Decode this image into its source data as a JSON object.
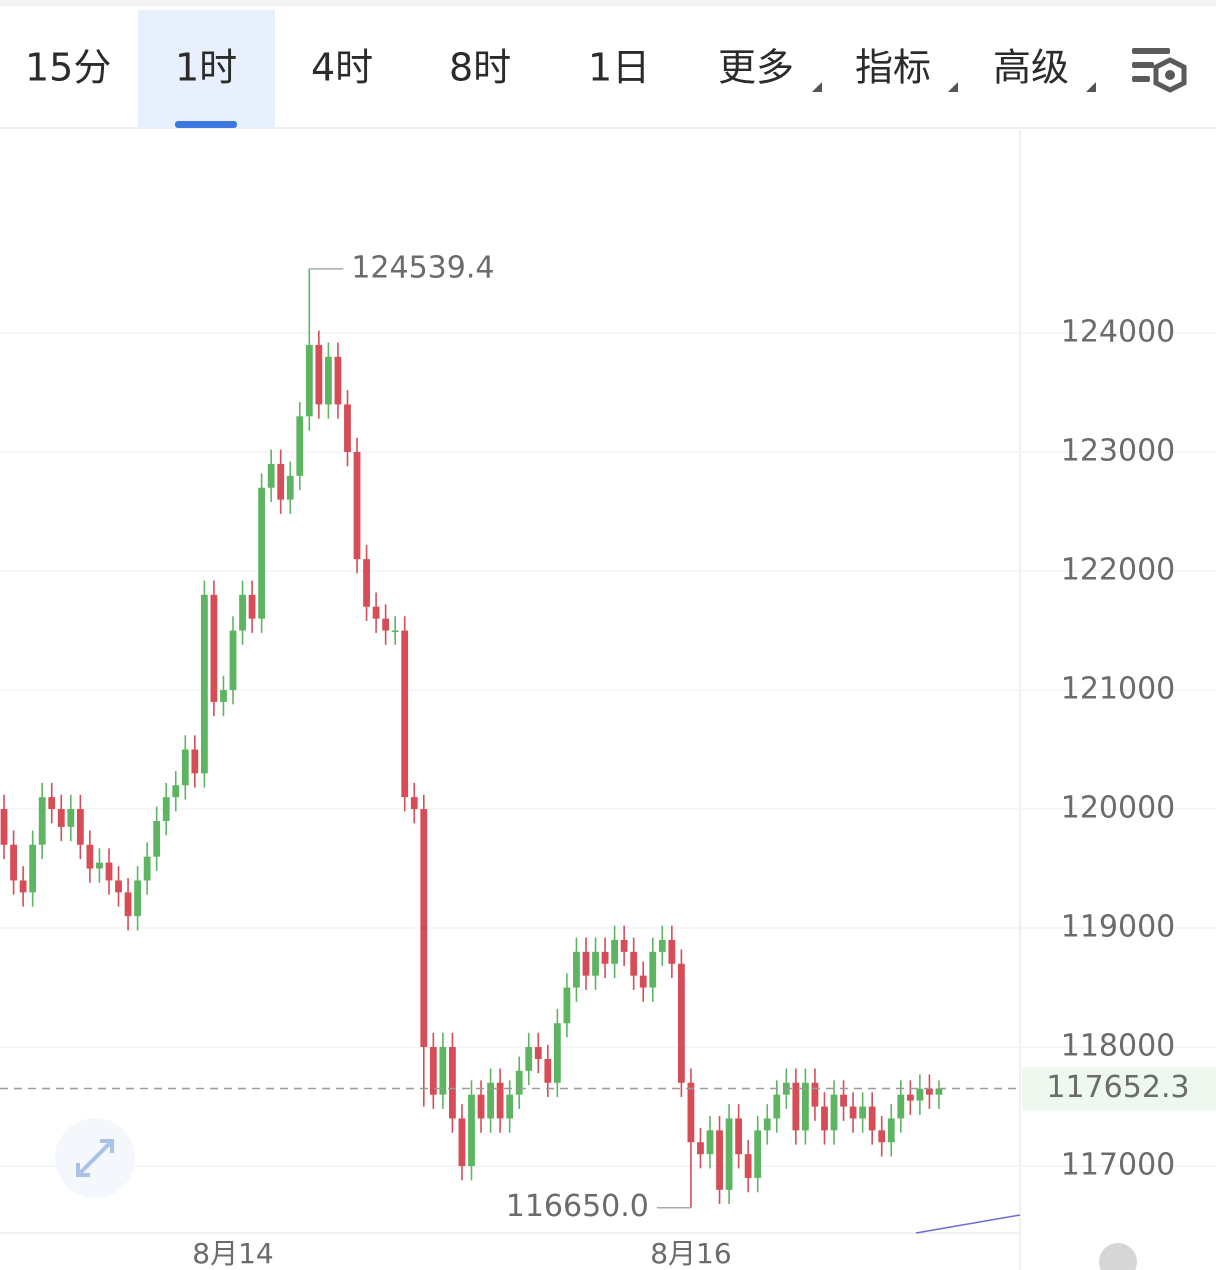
{
  "tabs": {
    "items": [
      "15分",
      "1时",
      "4时",
      "8时",
      "1日",
      "更多",
      "指标",
      "高级"
    ],
    "active": 1
  },
  "chart_data": {
    "type": "candlestick",
    "categories": [
      null,
      null,
      null,
      null,
      null,
      null,
      null,
      null,
      null,
      null,
      null,
      null,
      null,
      null,
      null,
      null,
      null,
      null,
      null,
      null,
      null,
      null,
      null,
      null,
      "8月14",
      null,
      null,
      null,
      null,
      null,
      null,
      null,
      null,
      null,
      null,
      null,
      null,
      null,
      null,
      null,
      null,
      null,
      null,
      null,
      null,
      null,
      null,
      null,
      null,
      null,
      null,
      null,
      null,
      null,
      null,
      null,
      null,
      null,
      null,
      null,
      null,
      null,
      null,
      null,
      null,
      null,
      null,
      null,
      null,
      null,
      null,
      null,
      "8月16",
      null,
      null,
      null,
      null,
      null,
      null,
      null,
      null,
      null,
      null,
      null,
      null,
      null,
      null,
      null,
      null,
      null,
      null,
      null,
      null,
      null,
      null,
      null,
      null,
      null,
      null
    ],
    "open": [
      120000,
      119700,
      119400,
      119300,
      119700,
      120100,
      120000,
      119850,
      120000,
      119700,
      119500,
      119550,
      119400,
      119300,
      119100,
      119400,
      119600,
      119900,
      120100,
      120200,
      120500,
      120300,
      121800,
      120900,
      121000,
      121500,
      121800,
      121600,
      122700,
      122900,
      122600,
      122800,
      123300,
      123900,
      123400,
      123800,
      123400,
      123000,
      122100,
      121700,
      121600,
      121500,
      121500,
      120100,
      120000,
      118000,
      117600,
      118000,
      117400,
      117000,
      117600,
      117400,
      117700,
      117400,
      117600,
      117800,
      118000,
      117900,
      117700,
      118200,
      118500,
      118800,
      118600,
      118800,
      118700,
      118900,
      118800,
      118600,
      118500,
      118800,
      118900,
      118700,
      117700,
      117200,
      117100,
      117300,
      116800,
      117400,
      117100,
      116900,
      117300,
      117400,
      117600,
      117700,
      117300,
      117700,
      117500,
      117300,
      117600,
      117500,
      117400,
      117500,
      117300,
      117200,
      117400,
      117600,
      117550,
      117650,
      117600
    ],
    "high": [
      120120,
      119820,
      119520,
      119820,
      120220,
      120220,
      120120,
      120120,
      120120,
      119820,
      119670,
      119670,
      119520,
      119420,
      119520,
      119720,
      120020,
      120220,
      120320,
      120620,
      120620,
      121920,
      121920,
      121120,
      121620,
      121920,
      121920,
      122820,
      123020,
      123020,
      122920,
      123420,
      124539.4,
      124020,
      123920,
      123920,
      123520,
      123120,
      122220,
      121820,
      121720,
      121620,
      121620,
      120220,
      120120,
      118120,
      118120,
      118120,
      117520,
      117720,
      117720,
      117820,
      117820,
      117720,
      117920,
      118120,
      118120,
      118020,
      118320,
      118620,
      118920,
      118920,
      118920,
      118920,
      119020,
      119020,
      118920,
      118720,
      118920,
      119020,
      119020,
      118820,
      117820,
      117320,
      117420,
      117420,
      117520,
      117520,
      117220,
      117420,
      117520,
      117720,
      117820,
      117820,
      117820,
      117820,
      117620,
      117720,
      117720,
      117620,
      117620,
      117620,
      117420,
      117520,
      117720,
      117720,
      117770,
      117770,
      117720
    ],
    "low": [
      119580,
      119280,
      119180,
      119180,
      119580,
      119880,
      119730,
      119730,
      119580,
      119380,
      119380,
      119280,
      119180,
      118980,
      118980,
      119280,
      119480,
      119780,
      119980,
      120080,
      120180,
      120180,
      120780,
      120780,
      120880,
      121380,
      121480,
      121480,
      122580,
      122480,
      122480,
      122680,
      123180,
      123280,
      123280,
      123280,
      122880,
      121980,
      121580,
      121480,
      121380,
      121380,
      119980,
      119880,
      117500,
      117480,
      117480,
      117280,
      116880,
      116880,
      117280,
      117280,
      117280,
      117280,
      117480,
      117680,
      117780,
      117580,
      117580,
      118080,
      118380,
      118480,
      118480,
      118580,
      118580,
      118680,
      118480,
      118380,
      118380,
      118680,
      118580,
      117580,
      116650,
      116980,
      116980,
      116680,
      116680,
      116980,
      116780,
      116780,
      117180,
      117280,
      117480,
      117180,
      117180,
      117380,
      117180,
      117180,
      117380,
      117280,
      117280,
      117180,
      117080,
      117080,
      117280,
      117430,
      117430,
      117480,
      117480
    ],
    "close": [
      119700,
      119400,
      119300,
      119700,
      120100,
      120000,
      119850,
      120000,
      119700,
      119500,
      119550,
      119400,
      119300,
      119100,
      119400,
      119600,
      119900,
      120100,
      120200,
      120500,
      120300,
      121800,
      120900,
      121000,
      121500,
      121800,
      121600,
      122700,
      122900,
      122600,
      122800,
      123300,
      123900,
      123400,
      123800,
      123400,
      123000,
      122100,
      121700,
      121600,
      121500,
      121500,
      120100,
      120000,
      118000,
      117600,
      118000,
      117400,
      117000,
      117600,
      117400,
      117700,
      117400,
      117600,
      117800,
      118000,
      117900,
      117700,
      118200,
      118500,
      118800,
      118600,
      118800,
      118700,
      118900,
      118800,
      118600,
      118500,
      118800,
      118900,
      118700,
      117700,
      117200,
      117100,
      117300,
      116800,
      117400,
      117100,
      116900,
      117300,
      117400,
      117600,
      117700,
      117300,
      117700,
      117500,
      117300,
      117600,
      117500,
      117400,
      117500,
      117300,
      117200,
      117400,
      117600,
      117550,
      117650,
      117600,
      117652.3
    ],
    "up_color": "#5db562",
    "down_color": "#d64d57",
    "ylim": [
      116446,
      125706
    ],
    "yticks": [
      117000,
      118000,
      119000,
      120000,
      121000,
      122000,
      123000,
      124000
    ],
    "grid": true,
    "last_price": 117652.3,
    "annotations": [
      {
        "value": 124539.4,
        "label": "124539.4"
      },
      {
        "value": 116650,
        "label": "116650.0"
      }
    ]
  }
}
